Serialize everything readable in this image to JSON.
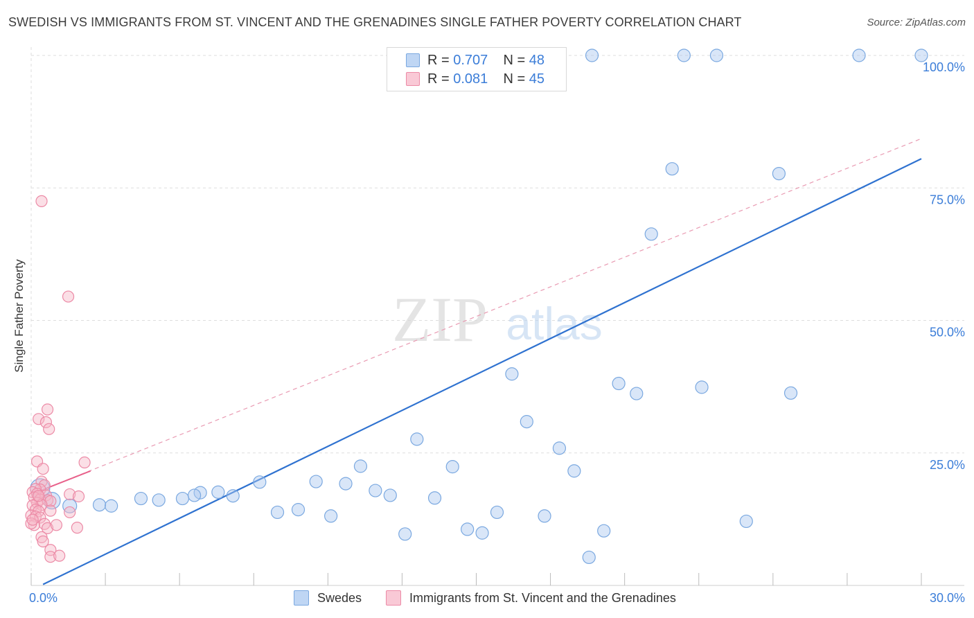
{
  "title": "SWEDISH VS IMMIGRANTS FROM ST. VINCENT AND THE GRENADINES SINGLE FATHER POVERTY CORRELATION CHART",
  "source": "Source: ZipAtlas.com",
  "watermark": {
    "zip": "ZIP",
    "atlas": "atlas"
  },
  "colors": {
    "blue_fill": "#aac8f0",
    "blue_stroke": "#7aa8e0",
    "blue_line": "#2f72d0",
    "pink_fill": "#f6b8c8",
    "pink_stroke": "#ec8aa6",
    "pink_line": "#e8608a",
    "axis_label": "#3b7dd8",
    "grid": "#dddddd"
  },
  "legend_top": {
    "rows": [
      {
        "r_label": "R = ",
        "r_value": "0.707",
        "n_label": "N = ",
        "n_value": "48",
        "series": "Swedes"
      },
      {
        "r_label": "R = ",
        "r_value": "0.081",
        "n_label": "N = ",
        "n_value": "45",
        "series": "Immigrants from St. Vincent and the Grenadines"
      }
    ]
  },
  "legend_bottom": [
    "Swedes",
    "Immigrants from St. Vincent and the Grenadines"
  ],
  "chart_data": {
    "type": "scatter",
    "title": "SWEDISH VS IMMIGRANTS FROM ST. VINCENT AND THE GRENADINES SINGLE FATHER POVERTY CORRELATION CHART",
    "xlabel": "",
    "ylabel": "Single Father Poverty",
    "xlim": [
      0,
      30
    ],
    "ylim": [
      0,
      100
    ],
    "x_tick_labels": [
      "0.0%",
      "30.0%"
    ],
    "y_tick_labels": [
      "25.0%",
      "50.0%",
      "75.0%",
      "100.0%"
    ],
    "y_ticks": [
      25,
      50,
      75,
      100
    ],
    "series": [
      {
        "name": "Swedes",
        "R": 0.707,
        "N": 48,
        "trend": {
          "x": [
            0.4,
            30
          ],
          "y": [
            0.2,
            80.5
          ],
          "style": "solid"
        },
        "points": [
          [
            0.3,
            18.3,
            14
          ],
          [
            0.7,
            16.0,
            12
          ],
          [
            1.3,
            15.0,
            10
          ],
          [
            2.3,
            15.2,
            9
          ],
          [
            2.7,
            15.0,
            9
          ],
          [
            3.7,
            16.4,
            9
          ],
          [
            4.3,
            16.1,
            9
          ],
          [
            5.1,
            16.4,
            9
          ],
          [
            5.7,
            17.5,
            9
          ],
          [
            6.3,
            17.6,
            9
          ],
          [
            5.5,
            17.0,
            9
          ],
          [
            6.8,
            16.9,
            9
          ],
          [
            7.7,
            19.5,
            9
          ],
          [
            8.3,
            13.8,
            9
          ],
          [
            9.0,
            14.3,
            9
          ],
          [
            9.6,
            19.6,
            9
          ],
          [
            10.1,
            13.1,
            9
          ],
          [
            10.6,
            19.2,
            9
          ],
          [
            11.1,
            22.5,
            9
          ],
          [
            11.6,
            17.9,
            9
          ],
          [
            12.1,
            17.0,
            9
          ],
          [
            12.6,
            9.7,
            9
          ],
          [
            13.0,
            27.6,
            9
          ],
          [
            13.6,
            16.5,
            9
          ],
          [
            14.2,
            22.4,
            9
          ],
          [
            14.7,
            10.6,
            9
          ],
          [
            15.2,
            9.9,
            9
          ],
          [
            15.7,
            13.8,
            9
          ],
          [
            16.2,
            39.9,
            9
          ],
          [
            16.7,
            30.9,
            9
          ],
          [
            17.3,
            13.1,
            9
          ],
          [
            17.8,
            25.9,
            9
          ],
          [
            18.3,
            21.6,
            9
          ],
          [
            18.8,
            5.3,
            9
          ],
          [
            19.3,
            10.3,
            9
          ],
          [
            19.8,
            38.1,
            9
          ],
          [
            20.4,
            36.2,
            9
          ],
          [
            20.9,
            66.3,
            9
          ],
          [
            21.6,
            78.6,
            9
          ],
          [
            22.6,
            37.4,
            9
          ],
          [
            24.1,
            12.1,
            9
          ],
          [
            25.2,
            77.7,
            9
          ],
          [
            25.6,
            36.3,
            9
          ],
          [
            18.9,
            100.0,
            9
          ],
          [
            22.0,
            100.0,
            9
          ],
          [
            23.1,
            100.0,
            9
          ],
          [
            27.9,
            100.0,
            9
          ],
          [
            30.0,
            100.0,
            9
          ]
        ]
      },
      {
        "name": "Immigrants from St. Vincent and the Grenadines",
        "R": 0.081,
        "N": 45,
        "trend": {
          "x": [
            0.0,
            2.0
          ],
          "y": [
            17.2,
            21.6
          ],
          "style": "solid"
        },
        "trend_extended": {
          "x": [
            0.0,
            30.0
          ],
          "y": [
            17.2,
            84.3
          ],
          "style": "dashed"
        },
        "points": [
          [
            0.35,
            72.5
          ],
          [
            1.25,
            54.5
          ],
          [
            0.55,
            33.2
          ],
          [
            0.25,
            31.4
          ],
          [
            0.5,
            30.8
          ],
          [
            0.6,
            29.5
          ],
          [
            0.2,
            23.4
          ],
          [
            0.4,
            22.0
          ],
          [
            1.8,
            23.2
          ],
          [
            0.35,
            19.6
          ],
          [
            0.45,
            18.9
          ],
          [
            0.3,
            18.1
          ],
          [
            0.15,
            18.2
          ],
          [
            0.05,
            17.6
          ],
          [
            0.2,
            17.3
          ],
          [
            0.5,
            17.0
          ],
          [
            1.3,
            17.2
          ],
          [
            1.6,
            16.8
          ],
          [
            0.1,
            16.6
          ],
          [
            0.3,
            16.2
          ],
          [
            0.55,
            16.1
          ],
          [
            0.65,
            15.9
          ],
          [
            0.2,
            15.6
          ],
          [
            0.35,
            15.2
          ],
          [
            0.05,
            15.1
          ],
          [
            0.15,
            14.3
          ],
          [
            0.25,
            14.0
          ],
          [
            0.65,
            14.1
          ],
          [
            1.3,
            13.8
          ],
          [
            0.0,
            13.2
          ],
          [
            0.15,
            13.0
          ],
          [
            0.3,
            12.8
          ],
          [
            0.45,
            11.6
          ],
          [
            0.1,
            11.4
          ],
          [
            0.0,
            11.7
          ],
          [
            0.55,
            10.8
          ],
          [
            0.85,
            11.4
          ],
          [
            1.55,
            10.9
          ],
          [
            0.35,
            9.1
          ],
          [
            0.4,
            8.3
          ],
          [
            0.65,
            6.7
          ],
          [
            0.65,
            5.4
          ],
          [
            0.95,
            5.6
          ],
          [
            0.05,
            12.4
          ],
          [
            0.25,
            16.9
          ]
        ]
      }
    ]
  }
}
